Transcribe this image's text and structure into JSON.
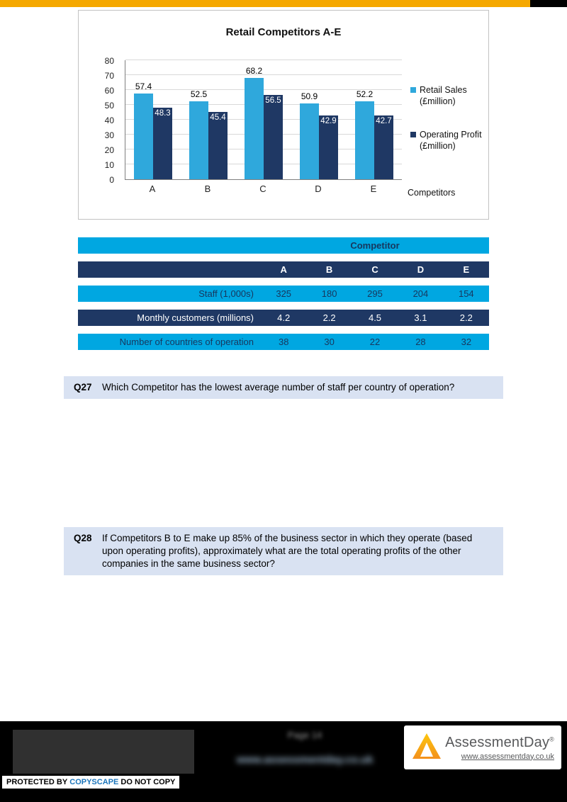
{
  "chart_data": {
    "type": "bar",
    "title": "Retail Competitors A-E",
    "categories": [
      "A",
      "B",
      "C",
      "D",
      "E"
    ],
    "series": [
      {
        "name": "Retail Sales (£million)",
        "color": "#2FA8DC",
        "values": [
          57.4,
          52.5,
          68.2,
          50.9,
          52.2
        ]
      },
      {
        "name": "Operating Profit (£million)",
        "color": "#1F3864",
        "values": [
          48.3,
          45.4,
          56.5,
          42.9,
          42.7
        ]
      }
    ],
    "xlabel": "Competitors",
    "ylabel": "",
    "ylim": [
      0,
      80
    ],
    "ytick_step": 10,
    "grid": true,
    "legend_position": "right"
  },
  "table": {
    "header_group": "Competitor",
    "columns": [
      "A",
      "B",
      "C",
      "D",
      "E"
    ],
    "rows": [
      {
        "label": "Staff (1,000s)",
        "values": [
          "325",
          "180",
          "295",
          "204",
          "154"
        ]
      },
      {
        "label": "Monthly customers (millions)",
        "values": [
          "4.2",
          "2.2",
          "4.5",
          "3.1",
          "2.2"
        ]
      },
      {
        "label": "Number of countries of operation",
        "values": [
          "38",
          "30",
          "22",
          "28",
          "32"
        ]
      }
    ]
  },
  "questions": [
    {
      "id": "Q27",
      "text": "Which Competitor has the lowest average number of staff per country of operation?"
    },
    {
      "id": "Q28",
      "text": "If Competitors B to E make up 85% of the business sector in which they operate (based upon operating profits), approximately what are the total operating profits of the other companies in the same business sector?"
    }
  ],
  "footer": {
    "blurred_line1": "Page 14",
    "blurred_line2": "www.assessmentday.co.uk",
    "brand": {
      "name": "AssessmentDay",
      "reg_mark": "®",
      "url": "www.assessmentday.co.uk"
    },
    "copyscape": {
      "prefix": "PROTECTED BY",
      "brand": "COPYSCAPE",
      "suffix": "DO NOT COPY"
    }
  },
  "colors": {
    "accent_yellow": "#F5A800",
    "chart_cyan": "#2FA8DC",
    "navy": "#1F3864",
    "table_cyan": "#00A7E1",
    "question_bg": "#D9E2F2",
    "copyscape_blue": "#1B75BB"
  }
}
